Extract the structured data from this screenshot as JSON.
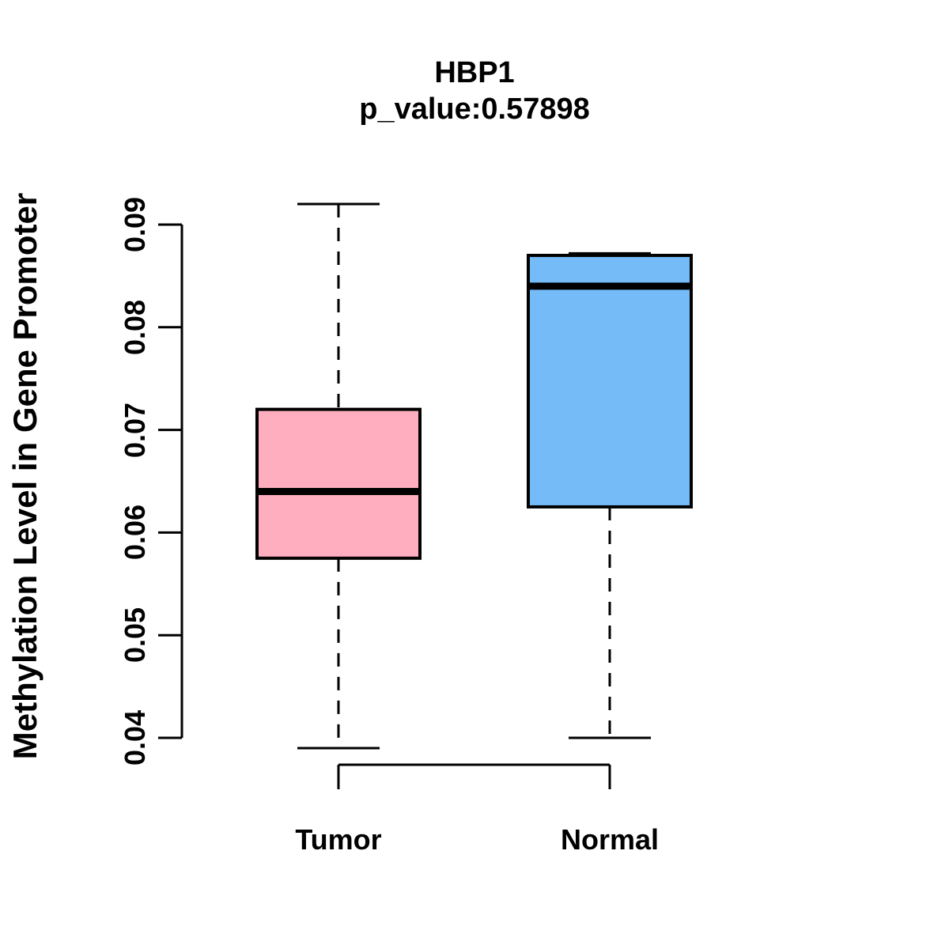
{
  "header": {
    "title": "HBP1",
    "subtitle": "p_value:0.57898"
  },
  "y_axis_label": "Methylation Level in Gene Promoter",
  "chart_data": {
    "type": "boxplot",
    "title": "HBP1",
    "subtitle": "p_value:0.57898",
    "ylabel": "Methylation Level in Gene Promoter",
    "xlabel": "",
    "categories": [
      "Tumor",
      "Normal"
    ],
    "series": [
      {
        "name": "Tumor",
        "min": 0.039,
        "q1": 0.0575,
        "median": 0.064,
        "q3": 0.072,
        "max": 0.092,
        "color": "#FFAEC0"
      },
      {
        "name": "Normal",
        "min": 0.04,
        "q1": 0.0625,
        "median": 0.084,
        "q3": 0.087,
        "max": 0.0872,
        "color": "#74BBF8"
      }
    ],
    "y_axis": {
      "min": 0.04,
      "max": 0.09,
      "tick_values": [
        0.04,
        0.05,
        0.06,
        0.07,
        0.08,
        0.09
      ],
      "tick_labels": [
        "0.04",
        "0.05",
        "0.06",
        "0.07",
        "0.08",
        "0.09"
      ]
    },
    "grid": false,
    "legend": "none",
    "whisker_style": "dashed",
    "line_color": "#000000",
    "background_color": "#FFFFFF"
  }
}
